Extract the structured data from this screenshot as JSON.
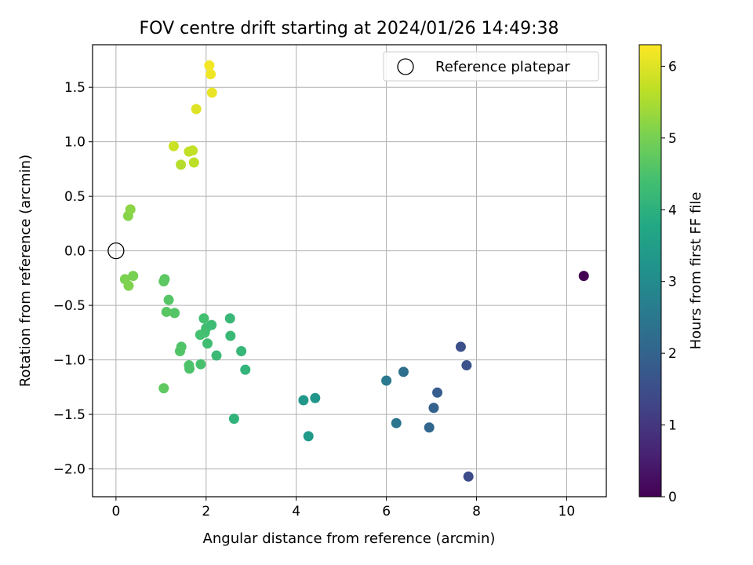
{
  "chart_data": {
    "type": "scatter",
    "title": "FOV centre drift starting at 2024/01/26 14:49:38",
    "xlabel": "Angular distance from reference (arcmin)",
    "ylabel": "Rotation from reference (arcmin)",
    "xlim": [
      -0.52,
      10.88
    ],
    "ylim": [
      -2.255,
      1.89
    ],
    "xticks": [
      0,
      2,
      4,
      6,
      8,
      10
    ],
    "yticks": [
      -2.0,
      -1.5,
      -1.0,
      -0.5,
      0.0,
      0.5,
      1.0,
      1.5
    ],
    "xtick_labels": [
      "0",
      "2",
      "4",
      "6",
      "8",
      "10"
    ],
    "ytick_labels": [
      "−2.0",
      "−1.5",
      "−1.0",
      "−0.5",
      "0.0",
      "0.5",
      "1.0",
      "1.5"
    ],
    "grid": true,
    "legend": {
      "placement": "top-right",
      "label": "Reference platepar"
    },
    "reference_point": {
      "x": 0,
      "y": 0
    },
    "colorbar": {
      "label": "Hours from first FF file",
      "colormap": "viridis",
      "range": [
        0,
        6.3
      ],
      "ticks": [
        0,
        1,
        2,
        3,
        4,
        5,
        6
      ],
      "tick_labels": [
        "0",
        "1",
        "2",
        "3",
        "4",
        "5",
        "6"
      ]
    },
    "points": [
      {
        "x": 10.38,
        "y": -0.23,
        "c": 0.0
      },
      {
        "x": 7.82,
        "y": -2.07,
        "c": 1.45
      },
      {
        "x": 7.65,
        "y": -0.88,
        "c": 1.55
      },
      {
        "x": 7.78,
        "y": -1.05,
        "c": 1.6
      },
      {
        "x": 7.13,
        "y": -1.3,
        "c": 1.85
      },
      {
        "x": 7.05,
        "y": -1.44,
        "c": 1.95
      },
      {
        "x": 6.95,
        "y": -1.62,
        "c": 2.1
      },
      {
        "x": 6.38,
        "y": -1.11,
        "c": 2.3
      },
      {
        "x": 6.22,
        "y": -1.58,
        "c": 2.45
      },
      {
        "x": 6.0,
        "y": -1.19,
        "c": 2.55
      },
      {
        "x": 4.42,
        "y": -1.35,
        "c": 3.3
      },
      {
        "x": 4.16,
        "y": -1.37,
        "c": 3.35
      },
      {
        "x": 4.27,
        "y": -1.7,
        "c": 3.4
      },
      {
        "x": 2.62,
        "y": -1.54,
        "c": 4.05
      },
      {
        "x": 2.87,
        "y": -1.09,
        "c": 4.1
      },
      {
        "x": 2.78,
        "y": -0.92,
        "c": 4.15
      },
      {
        "x": 2.53,
        "y": -0.62,
        "c": 4.2
      },
      {
        "x": 2.54,
        "y": -0.78,
        "c": 4.22
      },
      {
        "x": 2.23,
        "y": -0.96,
        "c": 4.25
      },
      {
        "x": 2.12,
        "y": -0.68,
        "c": 4.3
      },
      {
        "x": 2.0,
        "y": -0.71,
        "c": 4.32
      },
      {
        "x": 2.03,
        "y": -0.85,
        "c": 4.35
      },
      {
        "x": 1.97,
        "y": -0.75,
        "c": 4.37
      },
      {
        "x": 1.95,
        "y": -0.62,
        "c": 4.4
      },
      {
        "x": 1.87,
        "y": -0.77,
        "c": 4.42
      },
      {
        "x": 1.88,
        "y": -1.04,
        "c": 4.45
      },
      {
        "x": 1.62,
        "y": -1.05,
        "c": 4.5
      },
      {
        "x": 1.63,
        "y": -1.08,
        "c": 4.52
      },
      {
        "x": 1.45,
        "y": -0.88,
        "c": 4.55
      },
      {
        "x": 1.42,
        "y": -0.92,
        "c": 4.57
      },
      {
        "x": 1.3,
        "y": -0.57,
        "c": 4.6
      },
      {
        "x": 1.17,
        "y": -0.45,
        "c": 4.62
      },
      {
        "x": 1.12,
        "y": -0.56,
        "c": 4.65
      },
      {
        "x": 1.08,
        "y": -0.26,
        "c": 4.68
      },
      {
        "x": 1.06,
        "y": -0.28,
        "c": 4.7
      },
      {
        "x": 1.06,
        "y": -1.26,
        "c": 4.72
      },
      {
        "x": 0.38,
        "y": -0.23,
        "c": 5.0
      },
      {
        "x": 0.2,
        "y": -0.26,
        "c": 5.05
      },
      {
        "x": 0.28,
        "y": -0.32,
        "c": 5.08
      },
      {
        "x": 0.27,
        "y": 0.32,
        "c": 5.15
      },
      {
        "x": 0.32,
        "y": 0.38,
        "c": 5.2
      },
      {
        "x": 1.44,
        "y": 0.79,
        "c": 5.6
      },
      {
        "x": 1.73,
        "y": 0.81,
        "c": 5.65
      },
      {
        "x": 1.62,
        "y": 0.91,
        "c": 5.7
      },
      {
        "x": 1.7,
        "y": 0.92,
        "c": 5.72
      },
      {
        "x": 1.28,
        "y": 0.96,
        "c": 5.8
      },
      {
        "x": 1.78,
        "y": 1.3,
        "c": 6.0
      },
      {
        "x": 2.13,
        "y": 1.45,
        "c": 6.1
      },
      {
        "x": 2.1,
        "y": 1.62,
        "c": 6.15
      },
      {
        "x": 2.07,
        "y": 1.7,
        "c": 6.2
      }
    ]
  }
}
